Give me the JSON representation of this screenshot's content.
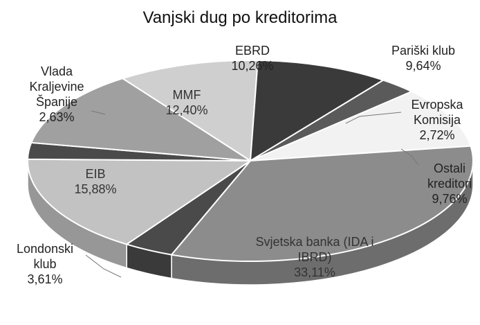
{
  "chart_data": {
    "type": "pie3d",
    "title": "Vanjski dug po kreditorima",
    "categories": [
      "EBRD",
      "Pariški klub",
      "Evropska Komisija",
      "Ostali kreditori",
      "Svjetska banka (IDA i IBRD)",
      "Londonski klub",
      "EIB",
      "Vlada Kraljevine Španije",
      "MMF"
    ],
    "values": [
      10.26,
      9.64,
      2.72,
      9.76,
      33.11,
      3.61,
      15.88,
      2.63,
      12.4
    ],
    "value_labels": [
      "10,26%",
      "9,64%",
      "2,72%",
      "9,76%",
      "33,11%",
      "3,61%",
      "15,88%",
      "2,63%",
      "12,40%"
    ],
    "colors": [
      "#cfcfcf",
      "#3a3a3a",
      "#5a5a5a",
      "#f2f2f2",
      "#8c8c8c",
      "#4a4a4a",
      "#c2c2c2",
      "#4a4a4a",
      "#a0a0a0"
    ]
  }
}
